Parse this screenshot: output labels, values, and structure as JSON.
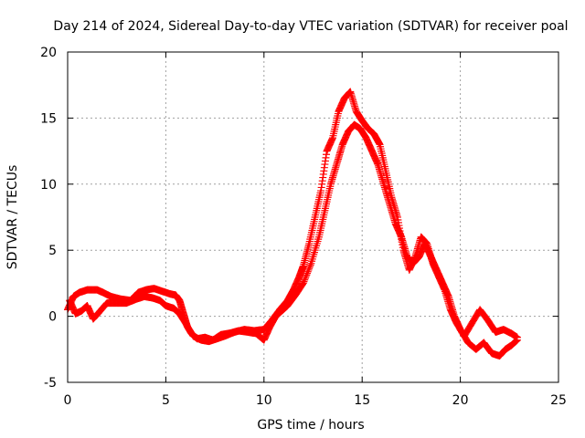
{
  "chart_data": {
    "type": "scatter",
    "title": "Day 214 of 2024, Sidereal Day-to-day VTEC variation (SDTVAR) for receiver poal",
    "xlabel": "GPS time / hours",
    "ylabel": "SDTVAR / TECUs",
    "xlim": [
      0,
      25
    ],
    "ylim": [
      -5,
      20
    ],
    "xticks": [
      0,
      5,
      10,
      15,
      20,
      25
    ],
    "yticks": [
      -5,
      0,
      5,
      10,
      15,
      20
    ],
    "grid": true,
    "marker": "+",
    "series": [
      {
        "name": "track-upper",
        "color": "#ff0000",
        "x": [
          0.0,
          0.3,
          0.6,
          1.0,
          1.5,
          1.8,
          2.2,
          2.7,
          3.2,
          3.6,
          4.0,
          4.4,
          4.8,
          5.2,
          5.5,
          5.7,
          5.9,
          6.1,
          6.4,
          6.8,
          7.2,
          7.6,
          8.0,
          8.5,
          9.0,
          9.5,
          10.0,
          10.4,
          10.8,
          11.2,
          11.5,
          11.8,
          12.0,
          12.3,
          12.6,
          12.9,
          13.2,
          13.5,
          13.8,
          14.1,
          14.4,
          14.7,
          15.0,
          15.3,
          15.6,
          15.9,
          16.2,
          16.5,
          16.8,
          17.1,
          17.4,
          17.7,
          18.0,
          18.3,
          18.6,
          18.9,
          19.2,
          19.5,
          19.8,
          20.2,
          20.6,
          21.0,
          21.4,
          21.8,
          22.2,
          22.6,
          22.9
        ],
        "y": [
          0.5,
          1.5,
          1.8,
          2.0,
          2.0,
          1.8,
          1.5,
          1.3,
          1.2,
          1.8,
          2.0,
          2.1,
          1.9,
          1.7,
          1.6,
          1.2,
          0.2,
          -0.8,
          -1.5,
          -1.8,
          -1.9,
          -1.7,
          -1.5,
          -1.2,
          -1.0,
          -1.1,
          -1.0,
          -0.3,
          0.5,
          1.2,
          2.0,
          3.0,
          3.8,
          5.5,
          7.5,
          9.5,
          12.5,
          13.5,
          15.5,
          16.5,
          17.0,
          15.5,
          14.8,
          14.2,
          13.8,
          13.0,
          11.0,
          9.0,
          7.5,
          5.0,
          3.5,
          4.5,
          6.0,
          5.5,
          4.0,
          3.0,
          2.0,
          0.5,
          -0.5,
          -1.5,
          -0.5,
          0.5,
          -0.3,
          -1.2,
          -1.0,
          -1.3,
          -1.6
        ]
      },
      {
        "name": "track-lower",
        "color": "#ff0000",
        "x": [
          0.1,
          0.4,
          0.7,
          1.0,
          1.3,
          1.6,
          2.0,
          2.5,
          3.0,
          3.5,
          3.9,
          4.3,
          4.7,
          5.0,
          5.4,
          5.7,
          6.0,
          6.3,
          6.6,
          7.0,
          7.4,
          7.8,
          8.2,
          8.7,
          9.2,
          9.6,
          10.0,
          10.3,
          10.6,
          10.9,
          11.2,
          11.6,
          12.0,
          12.4,
          12.8,
          13.1,
          13.4,
          13.7,
          14.0,
          14.3,
          14.6,
          14.9,
          15.2,
          15.5,
          15.8,
          16.1,
          16.4,
          16.7,
          17.0,
          17.3,
          17.6,
          17.9,
          18.2,
          18.5,
          18.8,
          19.1,
          19.4,
          19.7,
          20.0,
          20.4,
          20.8,
          21.2,
          21.6,
          22.0,
          22.3,
          22.6,
          22.9
        ],
        "y": [
          1.2,
          0.2,
          0.4,
          0.8,
          -0.2,
          0.3,
          1.0,
          1.0,
          1.0,
          1.3,
          1.5,
          1.4,
          1.2,
          0.8,
          0.6,
          0.2,
          -0.5,
          -1.3,
          -1.7,
          -1.6,
          -1.8,
          -1.4,
          -1.3,
          -1.1,
          -1.2,
          -1.3,
          -1.8,
          -0.8,
          0.0,
          0.4,
          0.8,
          1.6,
          2.5,
          4.0,
          6.0,
          8.0,
          10.0,
          11.5,
          13.0,
          14.0,
          14.5,
          14.2,
          13.5,
          12.5,
          11.5,
          10.0,
          8.5,
          7.0,
          6.0,
          4.5,
          4.0,
          4.5,
          5.5,
          4.5,
          3.5,
          2.5,
          1.5,
          0.0,
          -1.0,
          -2.0,
          -2.5,
          -2.0,
          -2.8,
          -3.0,
          -2.5,
          -2.2,
          -1.8
        ]
      }
    ]
  }
}
